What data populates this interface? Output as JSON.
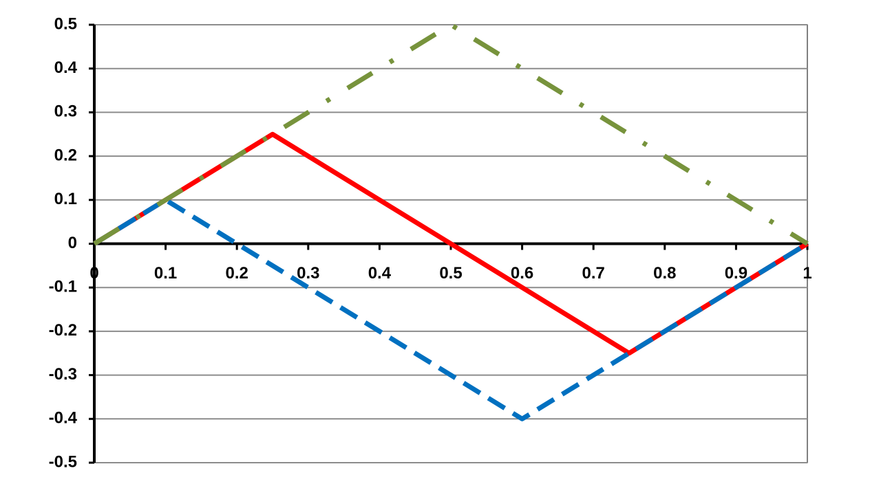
{
  "chart_data": {
    "type": "line",
    "xlim": [
      0,
      1
    ],
    "xticks": [
      0,
      0.1,
      0.2,
      0.3,
      0.4,
      0.5,
      0.6,
      0.7,
      0.8,
      0.9,
      1
    ],
    "ylim": [
      -0.5,
      0.5
    ],
    "yticks": [
      -0.5,
      -0.4,
      -0.3,
      -0.2,
      -0.1,
      0,
      0.1,
      0.2,
      0.3,
      0.4,
      0.5
    ],
    "grid": true,
    "series": [
      {
        "color": "#ff0000",
        "dash": "solid",
        "x": [
          0,
          0.25,
          0.75,
          1
        ],
        "values": [
          0,
          0.25,
          -0.25,
          0
        ]
      },
      {
        "color": "#0070c0",
        "dash": "dashed",
        "x": [
          0,
          0.1,
          0.6,
          0.75,
          1
        ],
        "values": [
          0,
          0.1,
          -0.4,
          -0.25,
          0
        ]
      },
      {
        "color": "#77933c",
        "dash": "dashdot",
        "x": [
          0,
          0.5,
          1
        ],
        "values": [
          0,
          0.5,
          0
        ]
      }
    ]
  }
}
